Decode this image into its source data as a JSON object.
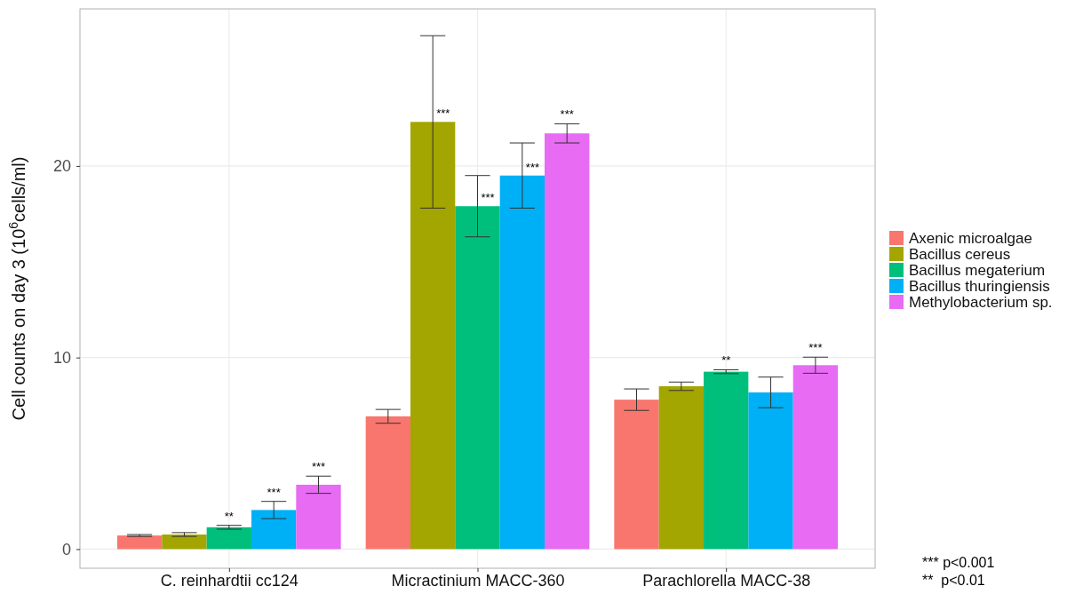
{
  "chart_data": {
    "type": "bar",
    "ylabel": "Cell counts on day 3 (10$^{6}$cells/ml)",
    "categories": [
      "C. reinhardtii cc124",
      "Micractinium MACC-360",
      "Parachlorella MACC-38"
    ],
    "series": [
      {
        "name": "Axenic microalgae",
        "color": "#f8766d",
        "values": [
          0.71,
          6.93,
          7.8
        ],
        "errors": [
          0.05,
          0.36,
          0.56
        ],
        "value_labels": [
          null,
          null,
          null
        ]
      },
      {
        "name": "Bacillus cereus",
        "color": "#a3a500",
        "values": [
          0.76,
          22.3,
          8.5
        ],
        "errors": [
          0.1,
          4.5,
          0.22
        ],
        "value_labels": [
          null,
          "***",
          null
        ]
      },
      {
        "name": "Bacillus megaterium",
        "color": "#00bf7d",
        "values": [
          1.14,
          17.9,
          9.26
        ],
        "errors": [
          0.1,
          1.6,
          0.1
        ],
        "value_labels": [
          "**",
          "***",
          "**"
        ]
      },
      {
        "name": "Bacillus thuringiensis",
        "color": "#00b0f6",
        "values": [
          2.04,
          19.5,
          8.18
        ],
        "errors": [
          0.45,
          1.7,
          0.8
        ],
        "value_labels": [
          "***",
          "***",
          null
        ]
      },
      {
        "name": "Methylobacterium sp.",
        "color": "#e76bf3",
        "values": [
          3.36,
          21.7,
          9.6
        ],
        "errors": [
          0.45,
          0.5,
          0.42
        ],
        "value_labels": [
          "***",
          "***",
          "***"
        ]
      }
    ],
    "ylim": [
      -1,
      28.2
    ],
    "yticks": [
      0,
      10,
      20
    ],
    "grid": true,
    "legend": "right",
    "annotations": [
      "*** p<0.001",
      "**  p<0.01"
    ]
  }
}
